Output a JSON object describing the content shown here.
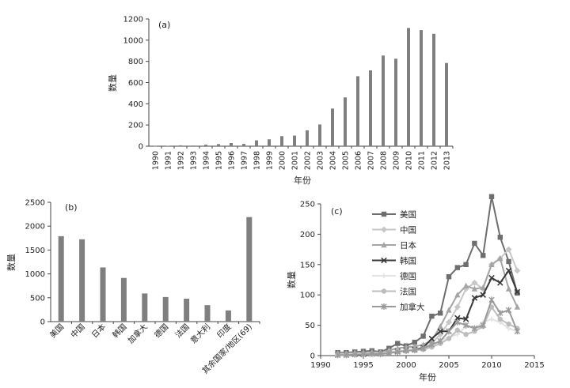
{
  "chart_data": [
    {
      "type": "bar",
      "panel_label": "(a)",
      "title": "",
      "xlabel": "年份",
      "ylabel": "数量",
      "ylim": [
        0,
        1200
      ],
      "yticks": [
        0,
        200,
        400,
        600,
        800,
        1000,
        1200
      ],
      "categories": [
        "1990",
        "1991",
        "1992",
        "1993",
        "1994",
        "1995",
        "1996",
        "1997",
        "1998",
        "1999",
        "2000",
        "2001",
        "2002",
        "2003",
        "2004",
        "2005",
        "2006",
        "2007",
        "2008",
        "2009",
        "2010",
        "2011",
        "2012",
        "2013"
      ],
      "values": [
        2,
        3,
        8,
        6,
        15,
        20,
        30,
        22,
        55,
        65,
        95,
        100,
        150,
        205,
        355,
        460,
        660,
        715,
        855,
        825,
        1115,
        1095,
        1060,
        785
      ],
      "color": "#7f7f7f"
    },
    {
      "type": "bar",
      "panel_label": "(b)",
      "title": "",
      "xlabel": "",
      "ylabel": "数量",
      "ylim": [
        0,
        2500
      ],
      "yticks": [
        0,
        500,
        1000,
        1500,
        2000,
        2500
      ],
      "categories": [
        "美国",
        "中国",
        "日本",
        "韩国",
        "加拿大",
        "德国",
        "法国",
        "意大利",
        "印度",
        "其余国家/地区(69)"
      ],
      "values": [
        1790,
        1725,
        1135,
        915,
        590,
        515,
        480,
        345,
        235,
        2190
      ],
      "color": "#7f7f7f"
    },
    {
      "type": "line",
      "panel_label": "(c)",
      "title": "",
      "xlabel": "年份",
      "ylabel": "数量",
      "xlim": [
        1990,
        2015
      ],
      "xticks": [
        1990,
        1995,
        2000,
        2005,
        2010,
        2015
      ],
      "ylim": [
        0,
        250
      ],
      "yticks": [
        0,
        50,
        100,
        150,
        200,
        250
      ],
      "x": [
        1992,
        1993,
        1994,
        1995,
        1996,
        1997,
        1998,
        1999,
        2000,
        2001,
        2002,
        2003,
        2004,
        2005,
        2006,
        2007,
        2008,
        2009,
        2010,
        2011,
        2012,
        2013
      ],
      "legend_position": "top-left",
      "series": [
        {
          "name": "美国",
          "color": "#6e6e6e",
          "marker": "square",
          "values": [
            5,
            5,
            6,
            7,
            8,
            6,
            12,
            20,
            16,
            22,
            32,
            65,
            70,
            130,
            145,
            150,
            185,
            165,
            262,
            195,
            155,
            103
          ]
        },
        {
          "name": "中国",
          "color": "#c7c7c7",
          "marker": "diamond",
          "values": [
            1,
            1,
            2,
            2,
            3,
            2,
            4,
            6,
            8,
            10,
            12,
            20,
            35,
            55,
            80,
            110,
            120,
            110,
            150,
            160,
            175,
            140
          ]
        },
        {
          "name": "日本",
          "color": "#a5a5a5",
          "marker": "triangle",
          "values": [
            4,
            4,
            5,
            5,
            6,
            5,
            9,
            12,
            14,
            15,
            18,
            25,
            48,
            75,
            100,
            115,
            110,
            112,
            150,
            160,
            110,
            80
          ]
        },
        {
          "name": "韩国",
          "color": "#3a3a3a",
          "marker": "x",
          "values": [
            1,
            1,
            2,
            2,
            3,
            3,
            4,
            7,
            9,
            10,
            13,
            28,
            40,
            40,
            62,
            60,
            95,
            100,
            128,
            120,
            140,
            105
          ]
        },
        {
          "name": "德国",
          "color": "#e3e3e3",
          "marker": "plus",
          "values": [
            2,
            2,
            3,
            3,
            4,
            4,
            6,
            8,
            9,
            10,
            11,
            15,
            25,
            30,
            35,
            48,
            45,
            55,
            60,
            55,
            45,
            40
          ]
        },
        {
          "name": "法国",
          "color": "#bdbdbd",
          "marker": "circle",
          "values": [
            1,
            1,
            2,
            2,
            3,
            3,
            5,
            7,
            8,
            9,
            10,
            14,
            20,
            28,
            42,
            35,
            40,
            48,
            80,
            60,
            52,
            45
          ]
        },
        {
          "name": "加拿大",
          "color": "#9a9a9a",
          "marker": "star",
          "values": [
            1,
            1,
            2,
            2,
            3,
            3,
            4,
            6,
            8,
            9,
            12,
            18,
            24,
            40,
            55,
            50,
            45,
            50,
            92,
            70,
            75,
            40
          ]
        }
      ]
    }
  ]
}
